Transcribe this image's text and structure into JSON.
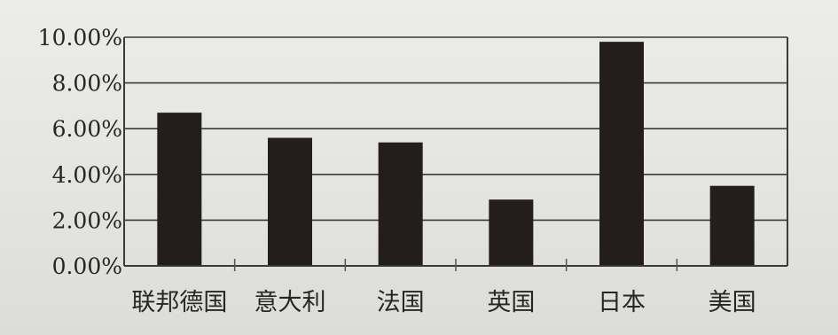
{
  "chart_data": {
    "type": "bar",
    "categories": [
      "联邦德国",
      "意大利",
      "法国",
      "英国",
      "日本",
      "美国"
    ],
    "values": [
      6.7,
      5.6,
      5.4,
      2.9,
      9.8,
      3.5
    ],
    "ylim": [
      0,
      10
    ],
    "yticks": [
      0,
      2,
      4,
      6,
      8,
      10
    ],
    "ytick_labels": [
      "0.00%",
      "2.00%",
      "4.00%",
      "6.00%",
      "8.00%",
      "10.00%"
    ],
    "grid": "horizontal",
    "legend": "none",
    "colors": {
      "bar": "#231d1c",
      "grid": "#3a3a3a",
      "background": "#e4e4e1"
    }
  }
}
